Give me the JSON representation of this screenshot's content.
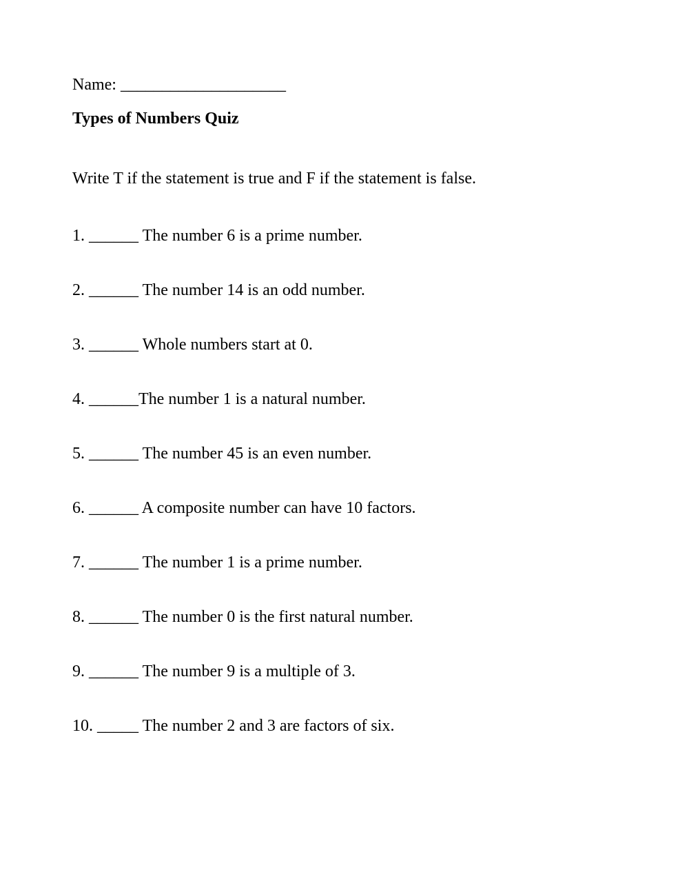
{
  "header": {
    "name_label": "Name: ____________________"
  },
  "title": "Types of Numbers Quiz",
  "instructions": "Write T if the statement is true and F if the statement is false.",
  "questions": {
    "q1": "1. ______ The number 6 is a prime number.",
    "q2": "2. ______ The number 14 is an odd number.",
    "q3": "3. ______ Whole numbers start at 0.",
    "q4": "4. ______The number 1 is a natural number.",
    "q5": "5. ______ The number 45 is an even number.",
    "q6": "6. ______ A composite number can have 10 factors.",
    "q7": "7. ______ The number 1 is a prime number.",
    "q8": "8. ______ The number 0 is the first natural number.",
    "q9": "9. ______ The number 9 is a multiple of 3.",
    "q10": "10. _____ The number 2 and 3 are factors of six."
  }
}
